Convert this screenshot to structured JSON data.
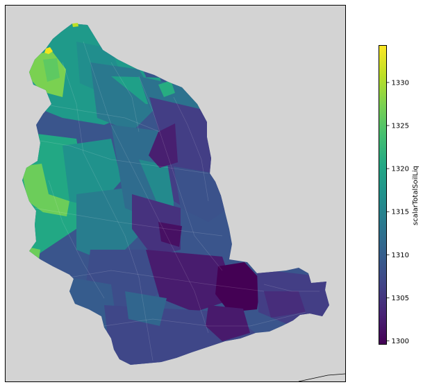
{
  "map": {
    "background_color": "#d3d3d3",
    "colormap": "viridis",
    "variable_name": "scalarTotalSoilLiq"
  },
  "colorbar": {
    "label": "scalarTotalSoilLiq",
    "min": 1299.6,
    "max": 1334.3,
    "ticks": [
      {
        "value": 1300,
        "label": "1300"
      },
      {
        "value": 1305,
        "label": "1305"
      },
      {
        "value": 1310,
        "label": "1310"
      },
      {
        "value": 1315,
        "label": "1315"
      },
      {
        "value": 1320,
        "label": "1320"
      },
      {
        "value": 1325,
        "label": "1325"
      },
      {
        "value": 1330,
        "label": "1330"
      }
    ]
  },
  "chart_data": {
    "type": "heatmap",
    "title": "",
    "colorbar_label": "scalarTotalSoilLiq",
    "value_range": [
      1299.6,
      1334.3
    ],
    "colorbar_ticks": [
      1300,
      1305,
      1310,
      1315,
      1320,
      1325,
      1330
    ],
    "regions": [
      {
        "zone": "northwest-tip",
        "value": 1334
      },
      {
        "zone": "northwest-edge",
        "value": 1327
      },
      {
        "zone": "west-lobe",
        "value": 1327
      },
      {
        "zone": "north",
        "value": 1316
      },
      {
        "zone": "northeast",
        "value": 1312
      },
      {
        "zone": "west-center",
        "value": 1318
      },
      {
        "zone": "center",
        "value": 1312
      },
      {
        "zone": "east-upper",
        "value": 1306
      },
      {
        "zone": "center-channel",
        "value": 1302
      },
      {
        "zone": "south-center",
        "value": 1306
      },
      {
        "zone": "southeast-core",
        "value": 1300
      },
      {
        "zone": "east-arm",
        "value": 1304
      },
      {
        "zone": "south",
        "value": 1307
      }
    ]
  }
}
